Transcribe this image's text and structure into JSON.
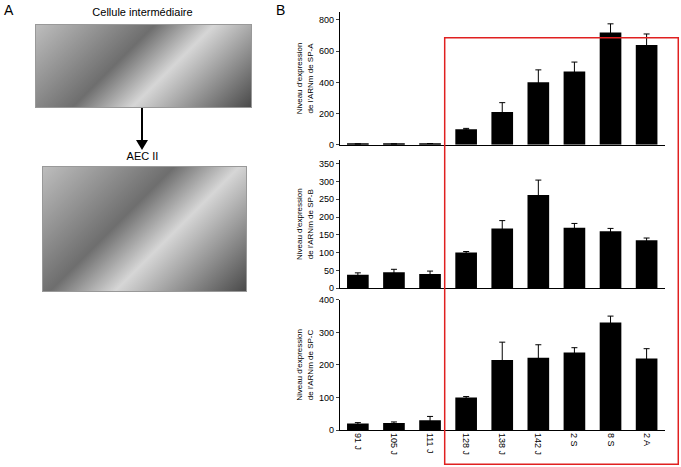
{
  "panel_a": {
    "label": "A",
    "top_caption": "Cellule intermédiaire",
    "bottom_caption": "AEC II"
  },
  "panel_b": {
    "label": "B"
  },
  "chart_data": [
    {
      "type": "bar",
      "ylabel": "Niveau d'expression de l'ARNm de SP-A",
      "categories": [
        "91 J",
        "105 J",
        "111 J",
        "128 J",
        "138 J",
        "142 J",
        "2 S",
        "8 S",
        "2 A"
      ],
      "values": [
        5,
        5,
        8,
        100,
        210,
        400,
        470,
        720,
        640
      ],
      "errors": [
        0,
        0,
        0,
        5,
        60,
        80,
        60,
        55,
        70
      ],
      "color": "#000000",
      "ylim": [
        0,
        850
      ],
      "yticks": [
        0,
        200,
        400,
        600,
        800
      ],
      "grid": false,
      "tick_labels": "y"
    },
    {
      "type": "bar",
      "ylabel": "Niveau d'expression de l'ARNm de SP-B",
      "categories": [
        "91 J",
        "105 J",
        "111 J",
        "128 J",
        "138 J",
        "142 J",
        "2 S",
        "8 S",
        "2 A"
      ],
      "values": [
        38,
        45,
        40,
        100,
        168,
        262,
        170,
        160,
        135
      ],
      "errors": [
        5,
        8,
        8,
        3,
        22,
        42,
        12,
        8,
        6
      ],
      "color": "#000000",
      "ylim": [
        0,
        360
      ],
      "yticks": [
        0,
        50,
        100,
        150,
        200,
        250,
        300,
        350
      ],
      "grid": false,
      "tick_labels": "y"
    },
    {
      "type": "bar",
      "ylabel": "Niveau d'expression de l'ARNm de SP-C",
      "categories": [
        "91 J",
        "105 J",
        "111 J",
        "128 J",
        "138 J",
        "142 J",
        "2 S",
        "8 S",
        "2 A"
      ],
      "values": [
        20,
        22,
        30,
        100,
        215,
        222,
        238,
        330,
        220
      ],
      "errors": [
        3,
        3,
        12,
        3,
        55,
        40,
        15,
        20,
        30
      ],
      "color": "#000000",
      "ylim": [
        0,
        400
      ],
      "yticks": [
        0,
        100,
        200,
        300,
        400
      ],
      "grid": false
    }
  ]
}
